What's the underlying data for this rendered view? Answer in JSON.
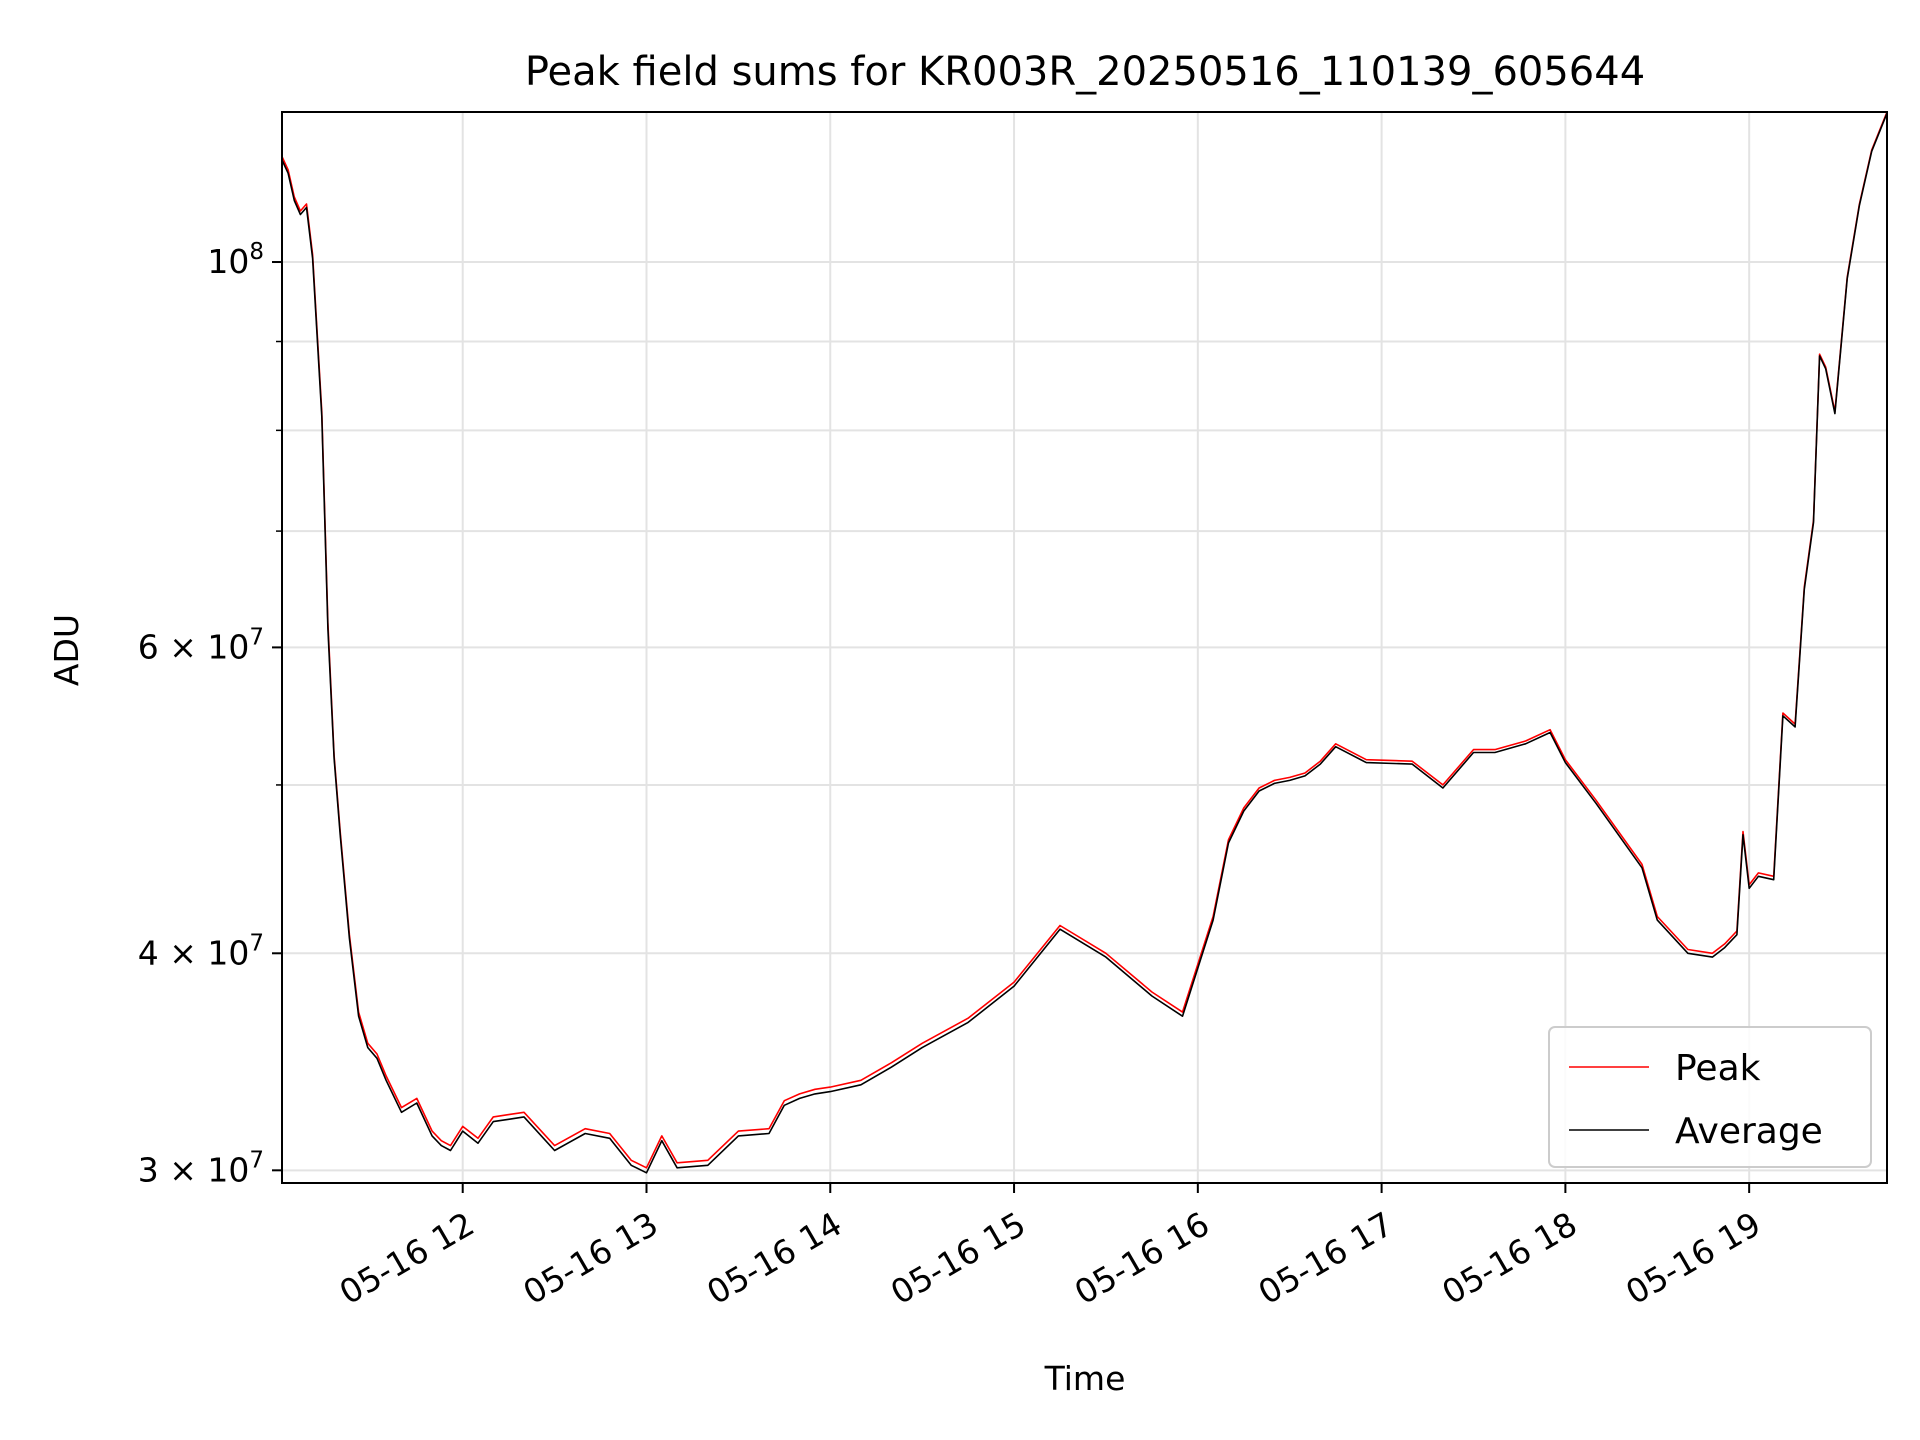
{
  "chart_data": {
    "type": "line",
    "title": "Peak field sums for KR003R_20250516_110139_605644",
    "xlabel": "Time",
    "ylabel": "ADU",
    "yscale": "log",
    "ylim": [
      29500000,
      122000000
    ],
    "xlim": [
      "2025-05-16 11:01",
      "2025-05-16 19:45"
    ],
    "grid": true,
    "legend_position": "lower right",
    "x_tick_labels": [
      "05-16 12",
      "05-16 13",
      "05-16 14",
      "05-16 15",
      "05-16 16",
      "05-16 17",
      "05-16 18",
      "05-16 19"
    ],
    "x_ticks": [
      "2025-05-16 12:00",
      "2025-05-16 13:00",
      "2025-05-16 14:00",
      "2025-05-16 15:00",
      "2025-05-16 16:00",
      "2025-05-16 17:00",
      "2025-05-16 18:00",
      "2025-05-16 19:00"
    ],
    "y_ticks": [
      {
        "value": 30000000,
        "mantissa": "3",
        "exponent": "7"
      },
      {
        "value": 40000000,
        "mantissa": "4",
        "exponent": "7"
      },
      {
        "value": 60000000,
        "mantissa": "6",
        "exponent": "7"
      },
      {
        "value": 100000000,
        "mantissa": "",
        "exponent": "8"
      }
    ],
    "y_minor_ticks": [
      50000000,
      70000000,
      80000000,
      90000000
    ],
    "series": [
      {
        "name": "Peak",
        "color": "#ff0000",
        "x": [
          "2025-05-16 11:01",
          "2025-05-16 11:03",
          "2025-05-16 11:05",
          "2025-05-16 11:07",
          "2025-05-16 11:09",
          "2025-05-16 11:11",
          "2025-05-16 11:14",
          "2025-05-16 11:16",
          "2025-05-16 11:18",
          "2025-05-16 11:20",
          "2025-05-16 11:23",
          "2025-05-16 11:26",
          "2025-05-16 11:29",
          "2025-05-16 11:32",
          "2025-05-16 11:35",
          "2025-05-16 11:40",
          "2025-05-16 11:45",
          "2025-05-16 11:50",
          "2025-05-16 11:53",
          "2025-05-16 11:56",
          "2025-05-16 12:00",
          "2025-05-16 12:05",
          "2025-05-16 12:10",
          "2025-05-16 12:15",
          "2025-05-16 12:20",
          "2025-05-16 12:30",
          "2025-05-16 12:40",
          "2025-05-16 12:48",
          "2025-05-16 12:55",
          "2025-05-16 13:00",
          "2025-05-16 13:05",
          "2025-05-16 13:10",
          "2025-05-16 13:20",
          "2025-05-16 13:30",
          "2025-05-16 13:40",
          "2025-05-16 13:45",
          "2025-05-16 13:50",
          "2025-05-16 13:55",
          "2025-05-16 14:00",
          "2025-05-16 14:10",
          "2025-05-16 14:20",
          "2025-05-16 14:30",
          "2025-05-16 14:45",
          "2025-05-16 15:00",
          "2025-05-16 15:15",
          "2025-05-16 15:30",
          "2025-05-16 15:45",
          "2025-05-16 15:55",
          "2025-05-16 16:05",
          "2025-05-16 16:10",
          "2025-05-16 16:15",
          "2025-05-16 16:20",
          "2025-05-16 16:25",
          "2025-05-16 16:30",
          "2025-05-16 16:35",
          "2025-05-16 16:40",
          "2025-05-16 16:45",
          "2025-05-16 16:55",
          "2025-05-16 17:10",
          "2025-05-16 17:20",
          "2025-05-16 17:30",
          "2025-05-16 17:37",
          "2025-05-16 17:47",
          "2025-05-16 17:55",
          "2025-05-16 18:00",
          "2025-05-16 18:10",
          "2025-05-16 18:25",
          "2025-05-16 18:30",
          "2025-05-16 18:40",
          "2025-05-16 18:48",
          "2025-05-16 18:52",
          "2025-05-16 18:56",
          "2025-05-16 18:58",
          "2025-05-16 19:00",
          "2025-05-16 19:03",
          "2025-05-16 19:08",
          "2025-05-16 19:11",
          "2025-05-16 19:15",
          "2025-05-16 19:18",
          "2025-05-16 19:21",
          "2025-05-16 19:23",
          "2025-05-16 19:25",
          "2025-05-16 19:28",
          "2025-05-16 19:32",
          "2025-05-16 19:36",
          "2025-05-16 19:40",
          "2025-05-16 19:45"
        ],
        "y": [
          115000000,
          113000000,
          109000000,
          107000000,
          108000000,
          101000000,
          82000000,
          62000000,
          52000000,
          47000000,
          41000000,
          37000000,
          35500000,
          35000000,
          34000000,
          32600000,
          33000000,
          31600000,
          31200000,
          31000000,
          31800000,
          31300000,
          32200000,
          32300000,
          32400000,
          31000000,
          31700000,
          31500000,
          30400000,
          30100000,
          31400000,
          30300000,
          30400000,
          31600000,
          31700000,
          32900000,
          33200000,
          33400000,
          33500000,
          33800000,
          34600000,
          35500000,
          36700000,
          38500000,
          41500000,
          40000000,
          38000000,
          37000000,
          42000000,
          46500000,
          48500000,
          49800000,
          50300000,
          50500000,
          50800000,
          51600000,
          52800000,
          51700000,
          51600000,
          50000000,
          52400000,
          52400000,
          53000000,
          53800000,
          51700000,
          49000000,
          45000000,
          42000000,
          40200000,
          40000000,
          40500000,
          41200000,
          47000000,
          43800000,
          44500000,
          44300000,
          55000000,
          54200000,
          65000000,
          71000000,
          88500000,
          87000000,
          82000000,
          98000000,
          108000000,
          116000000,
          122000000
        ]
      },
      {
        "name": "Average",
        "color": "#000000",
        "x": [
          "2025-05-16 11:01",
          "2025-05-16 11:03",
          "2025-05-16 11:05",
          "2025-05-16 11:07",
          "2025-05-16 11:09",
          "2025-05-16 11:11",
          "2025-05-16 11:14",
          "2025-05-16 11:16",
          "2025-05-16 11:18",
          "2025-05-16 11:20",
          "2025-05-16 11:23",
          "2025-05-16 11:26",
          "2025-05-16 11:29",
          "2025-05-16 11:32",
          "2025-05-16 11:35",
          "2025-05-16 11:40",
          "2025-05-16 11:45",
          "2025-05-16 11:50",
          "2025-05-16 11:53",
          "2025-05-16 11:56",
          "2025-05-16 12:00",
          "2025-05-16 12:05",
          "2025-05-16 12:10",
          "2025-05-16 12:15",
          "2025-05-16 12:20",
          "2025-05-16 12:30",
          "2025-05-16 12:40",
          "2025-05-16 12:48",
          "2025-05-16 12:55",
          "2025-05-16 13:00",
          "2025-05-16 13:05",
          "2025-05-16 13:10",
          "2025-05-16 13:20",
          "2025-05-16 13:30",
          "2025-05-16 13:40",
          "2025-05-16 13:45",
          "2025-05-16 13:50",
          "2025-05-16 13:55",
          "2025-05-16 14:00",
          "2025-05-16 14:10",
          "2025-05-16 14:20",
          "2025-05-16 14:30",
          "2025-05-16 14:45",
          "2025-05-16 15:00",
          "2025-05-16 15:15",
          "2025-05-16 15:30",
          "2025-05-16 15:45",
          "2025-05-16 15:55",
          "2025-05-16 16:05",
          "2025-05-16 16:10",
          "2025-05-16 16:15",
          "2025-05-16 16:20",
          "2025-05-16 16:25",
          "2025-05-16 16:30",
          "2025-05-16 16:35",
          "2025-05-16 16:40",
          "2025-05-16 16:45",
          "2025-05-16 16:55",
          "2025-05-16 17:10",
          "2025-05-16 17:20",
          "2025-05-16 17:30",
          "2025-05-16 17:37",
          "2025-05-16 17:47",
          "2025-05-16 17:55",
          "2025-05-16 18:00",
          "2025-05-16 18:10",
          "2025-05-16 18:25",
          "2025-05-16 18:30",
          "2025-05-16 18:40",
          "2025-05-16 18:48",
          "2025-05-16 18:52",
          "2025-05-16 18:56",
          "2025-05-16 18:58",
          "2025-05-16 19:00",
          "2025-05-16 19:03",
          "2025-05-16 19:08",
          "2025-05-16 19:11",
          "2025-05-16 19:15",
          "2025-05-16 19:18",
          "2025-05-16 19:21",
          "2025-05-16 19:23",
          "2025-05-16 19:25",
          "2025-05-16 19:28",
          "2025-05-16 19:32",
          "2025-05-16 19:36",
          "2025-05-16 19:40",
          "2025-05-16 19:45"
        ],
        "y": [
          114500000,
          112500000,
          108500000,
          106500000,
          107500000,
          100500000,
          81500000,
          61500000,
          51800000,
          46800000,
          40800000,
          36800000,
          35300000,
          34800000,
          33800000,
          32400000,
          32800000,
          31400000,
          31000000,
          30800000,
          31600000,
          31100000,
          32000000,
          32100000,
          32200000,
          30800000,
          31500000,
          31300000,
          30200000,
          29900000,
          31200000,
          30100000,
          30200000,
          31400000,
          31500000,
          32700000,
          33000000,
          33200000,
          33300000,
          33600000,
          34400000,
          35300000,
          36500000,
          38300000,
          41300000,
          39800000,
          37800000,
          36800000,
          41800000,
          46300000,
          48300000,
          49600000,
          50100000,
          50300000,
          50600000,
          51400000,
          52600000,
          51500000,
          51400000,
          49800000,
          52200000,
          52200000,
          52800000,
          53600000,
          51500000,
          48800000,
          44800000,
          41800000,
          40000000,
          39800000,
          40300000,
          41000000,
          46800000,
          43600000,
          44300000,
          44100000,
          54800000,
          54000000,
          64800000,
          70800000,
          88300000,
          86800000,
          81800000,
          97800000,
          107800000,
          115800000,
          121800000
        ]
      }
    ]
  }
}
